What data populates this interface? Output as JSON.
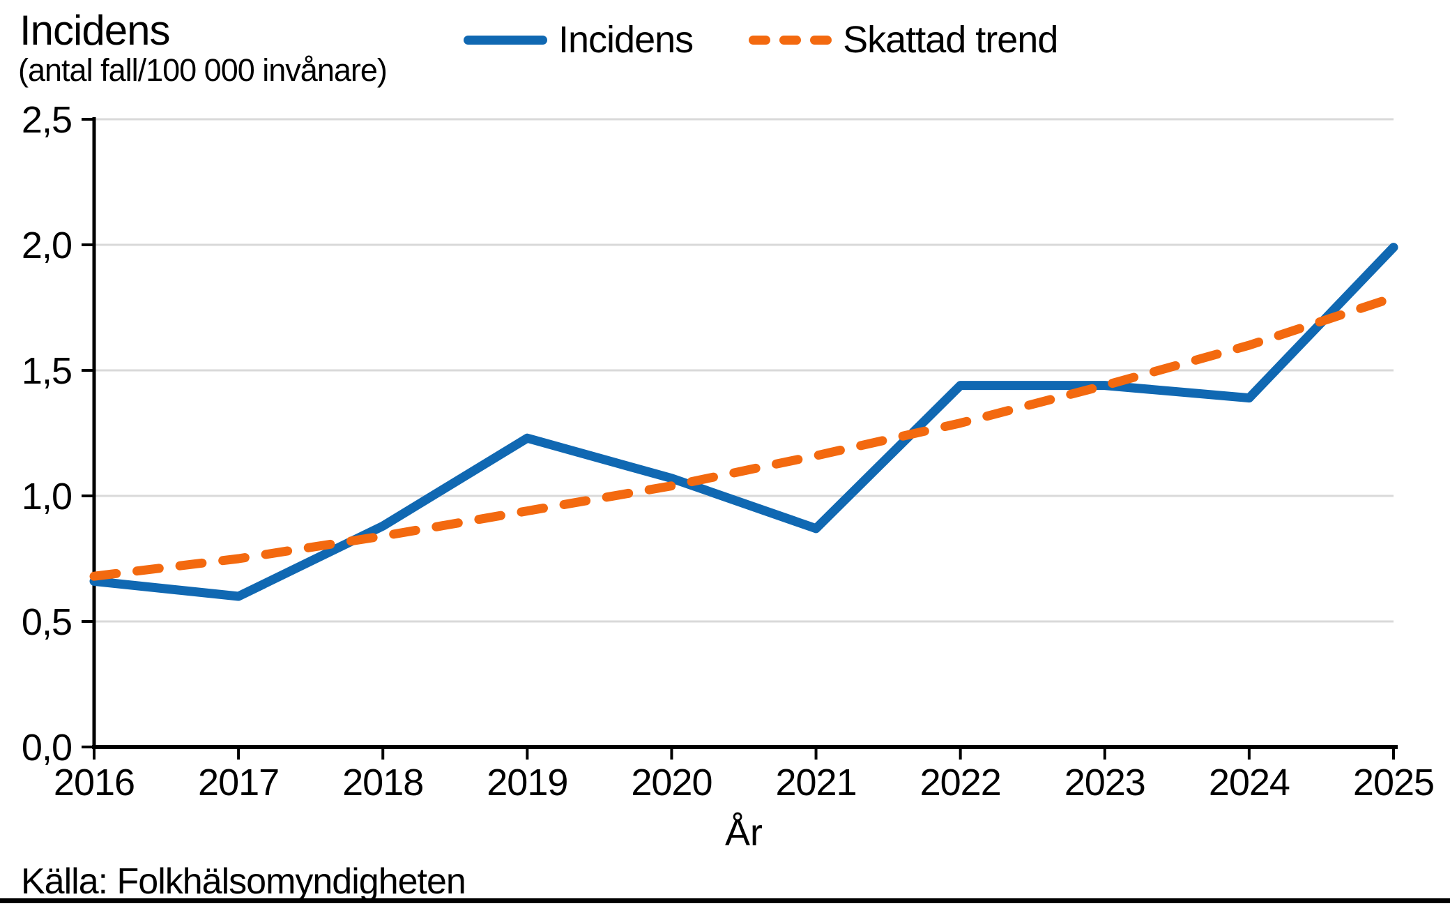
{
  "header": {
    "title": "Incidens",
    "subtitle": "(antal fall/100 000 invånare)"
  },
  "legend": {
    "items": [
      {
        "label": "Incidens",
        "color": "#1068b2",
        "style": "solid"
      },
      {
        "label": "Skattad trend",
        "color": "#f3690f",
        "style": "dashed"
      }
    ]
  },
  "footer": {
    "source": "Källa: Folkhälsomyndigheten"
  },
  "colors": {
    "background": "#ffffff",
    "text": "#000000",
    "axis": "#000000",
    "grid": "#d9d9d9",
    "bottom_bar": "#000000",
    "incidens_line": "#1068b2",
    "trend_line": "#f3690f"
  },
  "chart_data": {
    "type": "line",
    "title": "Incidens",
    "subtitle": "(antal fall/100 000 invånare)",
    "ylabel": "Incidens (antal fall/100 000 invånare)",
    "xlabel": "År",
    "x": [
      2016,
      2017,
      2018,
      2019,
      2020,
      2021,
      2022,
      2023,
      2024,
      2025
    ],
    "series": [
      {
        "name": "Incidens",
        "color": "#1068b2",
        "style": "solid",
        "values": [
          0.66,
          0.6,
          0.88,
          1.23,
          1.07,
          0.87,
          1.44,
          1.44,
          1.39,
          1.99
        ]
      },
      {
        "name": "Skattad trend",
        "color": "#f3690f",
        "style": "dashed",
        "values": [
          0.68,
          0.75,
          0.84,
          0.94,
          1.04,
          1.16,
          1.29,
          1.44,
          1.6,
          1.79
        ]
      }
    ],
    "ylim": [
      0,
      2.5
    ],
    "yticks": [
      0,
      0.5,
      1,
      1.5,
      2,
      2.5
    ],
    "ytick_labels": [
      "0,0",
      "0,5",
      "1,0",
      "1,5",
      "2,0",
      "2,5"
    ],
    "grid": true,
    "legend_position": "top-center",
    "source": "Källa: Folkhälsomyndigheten"
  }
}
